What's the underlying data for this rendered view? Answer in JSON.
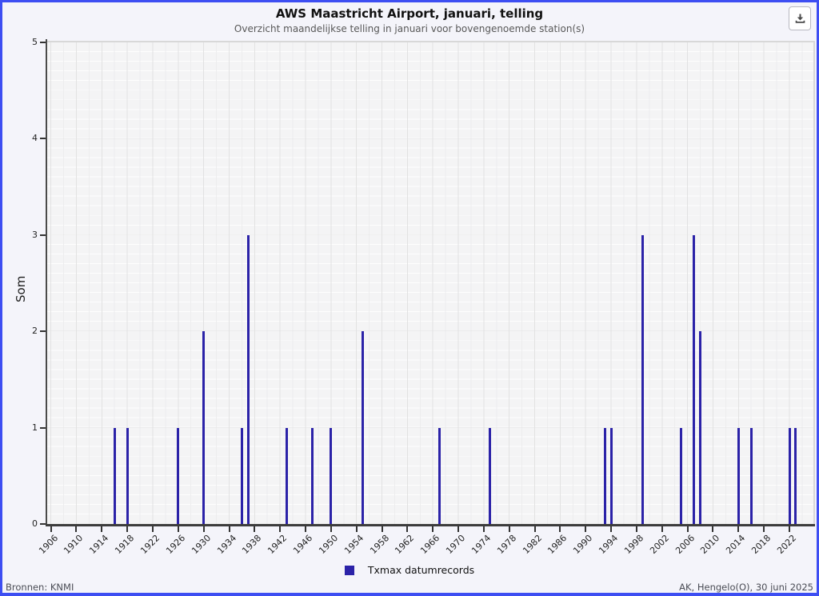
{
  "header": {
    "title": "AWS Maastricht Airport, januari, telling",
    "subtitle": "Overzicht maandelijkse telling in januari voor bovengenoemde station(s)"
  },
  "toolbar": {
    "buttons": [
      {
        "icon": "download-icon"
      }
    ]
  },
  "chart_data": {
    "type": "bar",
    "title": "AWS Maastricht Airport, januari, telling",
    "subtitle": "Overzicht maandelijkse telling in januari voor bovengenoemde station(s)",
    "xlabel": "",
    "ylabel": "Som",
    "ylim": [
      0,
      5
    ],
    "yticks": [
      0,
      1,
      2,
      3,
      4,
      5
    ],
    "xtick_years": [
      1906,
      1910,
      1914,
      1918,
      1922,
      1926,
      1930,
      1934,
      1938,
      1942,
      1946,
      1950,
      1954,
      1958,
      1962,
      1966,
      1970,
      1974,
      1978,
      1982,
      1986,
      1990,
      1994,
      1998,
      2002,
      2006,
      2010,
      2014,
      2018,
      2022
    ],
    "grid": true,
    "bar_color": "#2b22a8",
    "legend_position": "bottom",
    "series_name": "Txmax datumrecords",
    "points": [
      {
        "year": 1916,
        "value": 1
      },
      {
        "year": 1918,
        "value": 1
      },
      {
        "year": 1926,
        "value": 1
      },
      {
        "year": 1930,
        "value": 2
      },
      {
        "year": 1936,
        "value": 1
      },
      {
        "year": 1937,
        "value": 3
      },
      {
        "year": 1943,
        "value": 1
      },
      {
        "year": 1947,
        "value": 1
      },
      {
        "year": 1950,
        "value": 1
      },
      {
        "year": 1955,
        "value": 2
      },
      {
        "year": 1967,
        "value": 1
      },
      {
        "year": 1975,
        "value": 1
      },
      {
        "year": 1993,
        "value": 1
      },
      {
        "year": 1994,
        "value": 1
      },
      {
        "year": 1999,
        "value": 3
      },
      {
        "year": 2005,
        "value": 1
      },
      {
        "year": 2007,
        "value": 3
      },
      {
        "year": 2008,
        "value": 2
      },
      {
        "year": 2014,
        "value": 1
      },
      {
        "year": 2016,
        "value": 1
      },
      {
        "year": 2022,
        "value": 1
      },
      {
        "year": 2023,
        "value": 1
      }
    ]
  },
  "legend": {
    "items": [
      {
        "label": "Txmax datumrecords",
        "color": "#2b22a8"
      }
    ]
  },
  "footer": {
    "left": "Bronnen: KNMI",
    "right": "AK, Hengelo(O), 30 juni 2025"
  }
}
